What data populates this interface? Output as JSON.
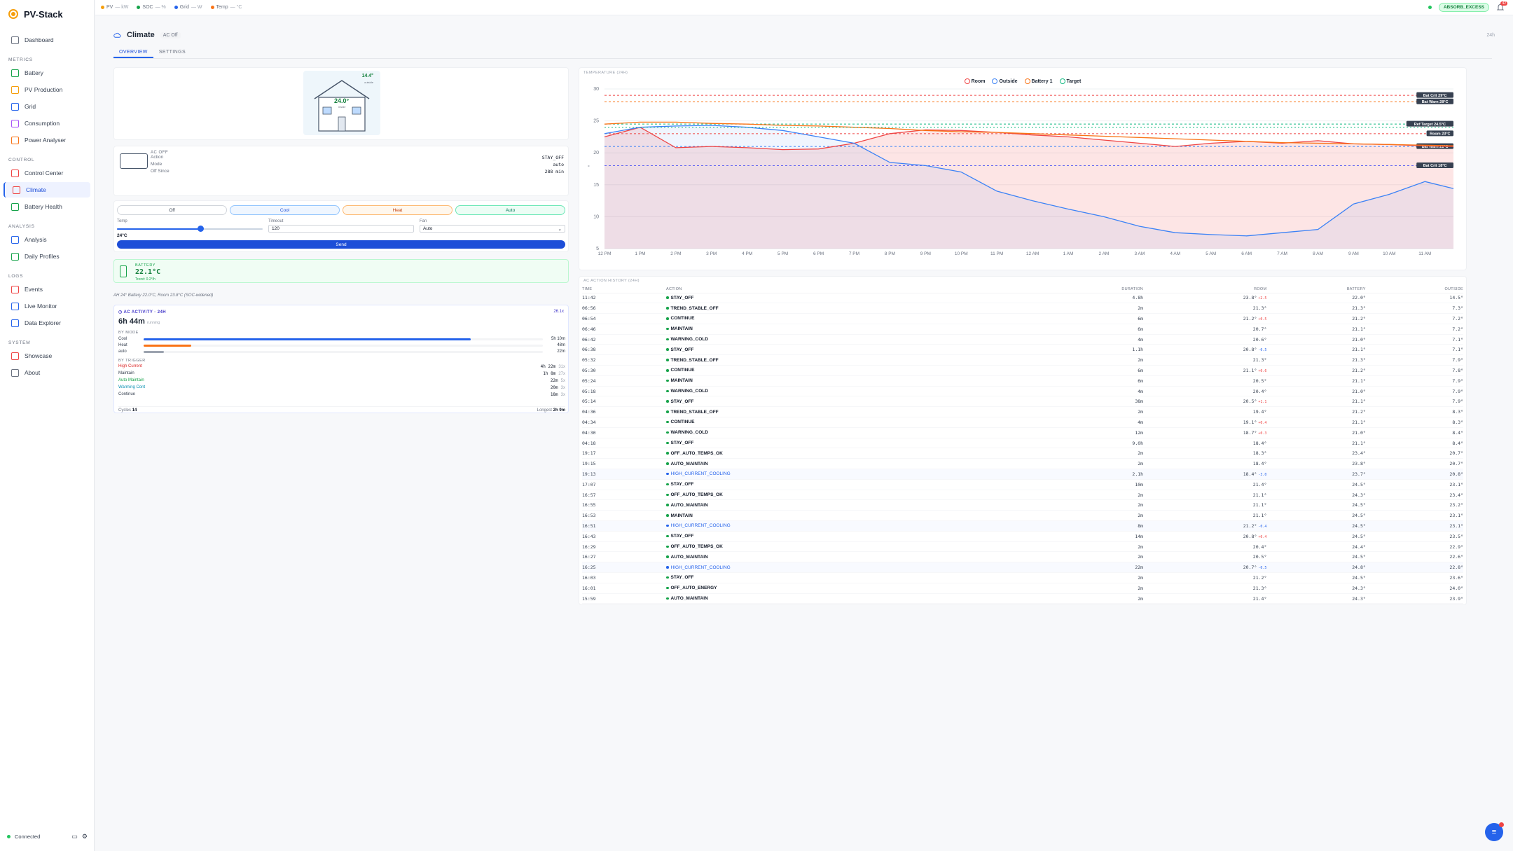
{
  "app": {
    "name": "PV-Stack"
  },
  "sidebar": {
    "items_top": [
      {
        "label": "Dashboard",
        "icon": "home-icon"
      }
    ],
    "sections": [
      {
        "title": "METRICS",
        "items": [
          {
            "label": "Battery",
            "icon": "battery-icon",
            "color": "#16a34a"
          },
          {
            "label": "PV Production",
            "icon": "sun-icon",
            "color": "#f59e0b"
          },
          {
            "label": "Grid",
            "icon": "grid-icon",
            "color": "#2563eb"
          },
          {
            "label": "Consumption",
            "icon": "consumption-icon",
            "color": "#a855f7"
          },
          {
            "label": "Power Analyser",
            "icon": "wave-icon",
            "color": "#f97316"
          }
        ]
      },
      {
        "title": "CONTROL",
        "items": [
          {
            "label": "Control Center",
            "icon": "sliders-icon",
            "color": "#ef4444"
          },
          {
            "label": "Climate",
            "icon": "thermometer-icon",
            "color": "#ef4444"
          },
          {
            "label": "Battery Health",
            "icon": "shield-icon",
            "color": "#16a34a"
          }
        ]
      },
      {
        "title": "ANALYSIS",
        "items": [
          {
            "label": "Analysis",
            "icon": "chart-icon",
            "color": "#2563eb"
          },
          {
            "label": "Daily Profiles",
            "icon": "calendar-icon",
            "color": "#16a34a"
          }
        ]
      },
      {
        "title": "LOGS",
        "items": [
          {
            "label": "Events",
            "icon": "clock-icon",
            "color": "#ef4444"
          },
          {
            "label": "Live Monitor",
            "icon": "monitor-icon",
            "color": "#2563eb"
          },
          {
            "label": "Data Explorer",
            "icon": "database-icon",
            "color": "#2563eb"
          }
        ]
      },
      {
        "title": "SYSTEM",
        "items": [
          {
            "label": "Showcase",
            "icon": "eye-icon",
            "color": "#ef4444"
          },
          {
            "label": "About",
            "icon": "info-icon",
            "color": "#6b7280"
          }
        ]
      }
    ],
    "footer": {
      "status": "Connected"
    }
  },
  "topbar": {
    "indicators": [
      {
        "label": "PV",
        "value": "— kW",
        "color": "#f59e0b"
      },
      {
        "label": "SOC",
        "value": "— %",
        "color": "#16a34a"
      },
      {
        "label": "Grid",
        "value": "— W",
        "color": "#2563eb"
      },
      {
        "label": "Temp",
        "value": "— °C",
        "color": "#f97316"
      }
    ],
    "mode_badge": "ABSORB_EXCESS",
    "notifications": "42"
  },
  "page": {
    "title": "Climate",
    "ac_state": "AC Off",
    "range": "24h",
    "tabs": [
      "OVERVIEW",
      "SETTINGS"
    ]
  },
  "house": {
    "inside_temp": "24.0°",
    "inside_label": "inside",
    "outside_temp": "14.4°",
    "outside_label": "outside"
  },
  "status": {
    "header": "AC OFF",
    "rows": [
      {
        "k": "Action",
        "v": "STAY_OFF"
      },
      {
        "k": "Mode",
        "v": "auto"
      },
      {
        "k": "Off Since",
        "v": "288 min"
      }
    ]
  },
  "control": {
    "modes": [
      "Off",
      "Cool",
      "Heat",
      "Auto"
    ],
    "temp_label": "Temp",
    "temp_value": "24°C",
    "temp_slider": 0.57,
    "timeout_label": "Timeout",
    "timeout_value": "120",
    "fan_label": "Fan",
    "fan_value": "Auto",
    "send_label": "Send"
  },
  "battery": {
    "label": "BATTERY",
    "temp": "22.1°C",
    "sub": "Trend: 0.2°/h"
  },
  "note": "AH 24° Battery 22.0°C, Room 23.8°C (SOC-widened)",
  "activity": {
    "title": "AC ACTIVITY · 24H",
    "count": "26.1x",
    "total": "6h 44m",
    "total_suffix": "running",
    "by_mode_title": "BY MODE",
    "by_mode": [
      {
        "label": "Cool",
        "value": "5h 10m",
        "frac": 0.82,
        "color": "#2563eb"
      },
      {
        "label": "Heat",
        "value": "48m",
        "frac": 0.12,
        "color": "#f97316"
      },
      {
        "label": "auto",
        "value": "22m",
        "frac": 0.05,
        "color": "#9ca3af"
      }
    ],
    "by_trigger_title": "BY TRIGGER",
    "by_trigger": [
      {
        "label": "High Current",
        "value": "4h 22m",
        "count": "31x",
        "color": "#dc2626"
      },
      {
        "label": "Maintain",
        "value": "1h 8m",
        "count": "27x",
        "color": "#374151"
      },
      {
        "label": "Auto Maintain",
        "value": "22m",
        "count": "5x",
        "color": "#16a34a"
      },
      {
        "label": "Warming Cont",
        "value": "20m",
        "count": "3x",
        "color": "#0891b2"
      },
      {
        "label": "Continue",
        "value": "18m",
        "count": "3x",
        "color": "#374151"
      }
    ],
    "cycles_label": "Cycles",
    "cycles": "14",
    "longest_label": "Longest",
    "longest": "2h 9m"
  },
  "chart_data": {
    "type": "line",
    "title": "TEMPERATURE (24H)",
    "legend": [
      "Room",
      "Outside",
      "Battery 1",
      "Target"
    ],
    "x_ticks": [
      "12 PM",
      "1 PM",
      "2 PM",
      "3 PM",
      "4 PM",
      "5 PM",
      "6 PM",
      "7 PM",
      "8 PM",
      "9 PM",
      "10 PM",
      "11 PM",
      "12 AM",
      "1 AM",
      "2 AM",
      "3 AM",
      "4 AM",
      "5 AM",
      "6 AM",
      "7 AM",
      "8 AM",
      "9 AM",
      "10 AM",
      "11 AM"
    ],
    "ylabel": "°",
    "ylim": [
      5,
      30
    ],
    "y_ticks": [
      5,
      10,
      15,
      20,
      25,
      30
    ],
    "hours": [
      0,
      1,
      2,
      3,
      4,
      5,
      6,
      7,
      8,
      9,
      10,
      11,
      12,
      13,
      14,
      15,
      16,
      17,
      18,
      19,
      20,
      21,
      22,
      23,
      23.8
    ],
    "series": [
      {
        "name": "Room",
        "color": "#ef4444",
        "values": [
          22.5,
          24.0,
          20.8,
          21.0,
          20.8,
          20.5,
          20.6,
          21.5,
          23.0,
          23.6,
          23.5,
          23.2,
          22.8,
          22.5,
          22.0,
          21.5,
          21.0,
          21.5,
          21.8,
          21.5,
          21.9,
          21.4,
          21.3,
          21.1,
          21.0
        ]
      },
      {
        "name": "Outside",
        "color": "#3b82f6",
        "values": [
          23.0,
          24.0,
          24.2,
          24.3,
          24.0,
          23.5,
          22.5,
          21.5,
          18.5,
          18.0,
          17.0,
          14.0,
          12.5,
          11.2,
          10.0,
          8.5,
          7.5,
          7.2,
          7.0,
          7.5,
          8.0,
          12.0,
          13.5,
          15.5,
          14.4
        ]
      },
      {
        "name": "Battery 1",
        "color": "#f97316",
        "values": [
          24.5,
          24.8,
          24.8,
          24.6,
          24.5,
          24.3,
          24.2,
          24.0,
          23.8,
          23.5,
          23.3,
          23.2,
          23.0,
          22.8,
          22.6,
          22.4,
          22.2,
          22.0,
          21.8,
          21.6,
          21.5,
          21.4,
          21.3,
          21.2,
          21.1
        ]
      },
      {
        "name": "Target",
        "color": "#10b981",
        "values": [
          24.0,
          24.0,
          24.0,
          24.0,
          24.0,
          24.0,
          24.0,
          24.0,
          24.0,
          24.0,
          24.0,
          24.0,
          24.0,
          24.0,
          24.0,
          24.0,
          24.0,
          24.0,
          24.0,
          24.0,
          24.0,
          24.0,
          24.0,
          24.0,
          24.0
        ]
      }
    ],
    "ref_lines": [
      {
        "label": "Bat Crit 29°C",
        "value": 29,
        "color": "#ef4444"
      },
      {
        "label": "Bat Warn 28°C",
        "value": 28,
        "color": "#f97316"
      },
      {
        "label": "Ref Target 24.5°C",
        "value": 24.5,
        "color": "#10b981"
      },
      {
        "label": "Room 23°C",
        "value": 23,
        "color": "#ef4444"
      },
      {
        "label": "Bat Warn 21°C",
        "value": 21,
        "color": "#3b82f6"
      },
      {
        "label": "Bat Crit 18°C",
        "value": 18,
        "color": "#6366f1"
      }
    ]
  },
  "history": {
    "title": "AC ACTION HISTORY (24H)",
    "columns": [
      "TIME",
      "ACTION",
      "DURATION",
      "ROOM",
      "BATTERY",
      "OUTSIDE"
    ],
    "rows": [
      {
        "time": "11:42",
        "action": "STAY_OFF",
        "dur": "4.8h",
        "room": "23.8°",
        "delta": "+2.5",
        "bat": "22.0°",
        "out": "14.5°",
        "dot": "#16a34a",
        "hl": false
      },
      {
        "time": "06:56",
        "action": "TREND_STABLE_OFF",
        "dur": "2m",
        "room": "21.3°",
        "delta": "",
        "bat": "21.3°",
        "out": "7.3°",
        "dot": "#16a34a",
        "hl": false
      },
      {
        "time": "06:54",
        "action": "CONTINUE",
        "dur": "6m",
        "room": "21.2°",
        "delta": "+0.5",
        "bat": "21.2°",
        "out": "7.2°",
        "dot": "#16a34a",
        "hl": false
      },
      {
        "time": "06:46",
        "action": "MAINTAIN",
        "dur": "6m",
        "room": "20.7°",
        "delta": "",
        "bat": "21.1°",
        "out": "7.2°",
        "dot": "#16a34a",
        "hl": false
      },
      {
        "time": "06:42",
        "action": "WARNING_COLD",
        "dur": "4m",
        "room": "20.6°",
        "delta": "",
        "bat": "21.0°",
        "out": "7.1°",
        "dot": "#16a34a",
        "hl": false
      },
      {
        "time": "06:38",
        "action": "STAY_OFF",
        "dur": "1.1h",
        "room": "20.8°",
        "delta": "-0.5",
        "bat": "21.1°",
        "out": "7.1°",
        "dot": "#16a34a",
        "hl": false
      },
      {
        "time": "05:32",
        "action": "TREND_STABLE_OFF",
        "dur": "2m",
        "room": "21.3°",
        "delta": "",
        "bat": "21.3°",
        "out": "7.9°",
        "dot": "#16a34a",
        "hl": false
      },
      {
        "time": "05:30",
        "action": "CONTINUE",
        "dur": "6m",
        "room": "21.1°",
        "delta": "+0.6",
        "bat": "21.2°",
        "out": "7.8°",
        "dot": "#16a34a",
        "hl": false
      },
      {
        "time": "05:24",
        "action": "MAINTAIN",
        "dur": "6m",
        "room": "20.5°",
        "delta": "",
        "bat": "21.1°",
        "out": "7.9°",
        "dot": "#16a34a",
        "hl": false
      },
      {
        "time": "05:18",
        "action": "WARNING_COLD",
        "dur": "4m",
        "room": "20.4°",
        "delta": "",
        "bat": "21.0°",
        "out": "7.9°",
        "dot": "#16a34a",
        "hl": false
      },
      {
        "time": "05:14",
        "action": "STAY_OFF",
        "dur": "38m",
        "room": "20.5°",
        "delta": "+1.1",
        "bat": "21.1°",
        "out": "7.9°",
        "dot": "#16a34a",
        "hl": false
      },
      {
        "time": "04:36",
        "action": "TREND_STABLE_OFF",
        "dur": "2m",
        "room": "19.4°",
        "delta": "",
        "bat": "21.2°",
        "out": "8.3°",
        "dot": "#16a34a",
        "hl": false
      },
      {
        "time": "04:34",
        "action": "CONTINUE",
        "dur": "4m",
        "room": "19.1°",
        "delta": "+0.4",
        "bat": "21.1°",
        "out": "8.3°",
        "dot": "#16a34a",
        "hl": false
      },
      {
        "time": "04:30",
        "action": "WARNING_COLD",
        "dur": "12m",
        "room": "18.7°",
        "delta": "+0.3",
        "bat": "21.0°",
        "out": "8.4°",
        "dot": "#16a34a",
        "hl": false
      },
      {
        "time": "04:18",
        "action": "STAY_OFF",
        "dur": "9.0h",
        "room": "18.4°",
        "delta": "",
        "bat": "21.1°",
        "out": "8.4°",
        "dot": "#16a34a",
        "hl": false
      },
      {
        "time": "19:17",
        "action": "OFF_AUTO_TEMPS_OK",
        "dur": "2m",
        "room": "18.3°",
        "delta": "",
        "bat": "23.4°",
        "out": "20.7°",
        "dot": "#16a34a",
        "hl": false
      },
      {
        "time": "19:15",
        "action": "AUTO_MAINTAIN",
        "dur": "2m",
        "room": "18.4°",
        "delta": "",
        "bat": "23.8°",
        "out": "20.7°",
        "dot": "#16a34a",
        "hl": false
      },
      {
        "time": "19:13",
        "action": "HIGH_CURRENT_COOLING",
        "dur": "2.1h",
        "room": "18.4°",
        "delta": "-3.0",
        "bat": "23.7°",
        "out": "20.8°",
        "dot": "#2563eb",
        "hl": true
      },
      {
        "time": "17:07",
        "action": "STAY_OFF",
        "dur": "10m",
        "room": "21.4°",
        "delta": "",
        "bat": "24.5°",
        "out": "23.1°",
        "dot": "#16a34a",
        "hl": false
      },
      {
        "time": "16:57",
        "action": "OFF_AUTO_TEMPS_OK",
        "dur": "2m",
        "room": "21.1°",
        "delta": "",
        "bat": "24.3°",
        "out": "23.4°",
        "dot": "#16a34a",
        "hl": false
      },
      {
        "time": "16:55",
        "action": "AUTO_MAINTAIN",
        "dur": "2m",
        "room": "21.1°",
        "delta": "",
        "bat": "24.5°",
        "out": "23.2°",
        "dot": "#16a34a",
        "hl": false
      },
      {
        "time": "16:53",
        "action": "MAINTAIN",
        "dur": "2m",
        "room": "21.1°",
        "delta": "",
        "bat": "24.5°",
        "out": "23.1°",
        "dot": "#16a34a",
        "hl": false
      },
      {
        "time": "16:51",
        "action": "HIGH_CURRENT_COOLING",
        "dur": "8m",
        "room": "21.2°",
        "delta": "-0.4",
        "bat": "24.5°",
        "out": "23.1°",
        "dot": "#2563eb",
        "hl": true
      },
      {
        "time": "16:43",
        "action": "STAY_OFF",
        "dur": "14m",
        "room": "20.8°",
        "delta": "+0.4",
        "bat": "24.5°",
        "out": "23.5°",
        "dot": "#16a34a",
        "hl": false
      },
      {
        "time": "16:29",
        "action": "OFF_AUTO_TEMPS_OK",
        "dur": "2m",
        "room": "20.4°",
        "delta": "",
        "bat": "24.4°",
        "out": "22.9°",
        "dot": "#16a34a",
        "hl": false
      },
      {
        "time": "16:27",
        "action": "AUTO_MAINTAIN",
        "dur": "2m",
        "room": "20.5°",
        "delta": "",
        "bat": "24.5°",
        "out": "22.6°",
        "dot": "#16a34a",
        "hl": false
      },
      {
        "time": "16:25",
        "action": "HIGH_CURRENT_COOLING",
        "dur": "22m",
        "room": "20.7°",
        "delta": "-0.5",
        "bat": "24.8°",
        "out": "22.8°",
        "dot": "#2563eb",
        "hl": true
      },
      {
        "time": "16:03",
        "action": "STAY_OFF",
        "dur": "2m",
        "room": "21.2°",
        "delta": "",
        "bat": "24.5°",
        "out": "23.6°",
        "dot": "#16a34a",
        "hl": false
      },
      {
        "time": "16:01",
        "action": "OFF_AUTO_ENERGY",
        "dur": "2m",
        "room": "21.3°",
        "delta": "",
        "bat": "24.3°",
        "out": "24.0°",
        "dot": "#16a34a",
        "hl": false
      },
      {
        "time": "15:59",
        "action": "AUTO_MAINTAIN",
        "dur": "2m",
        "room": "21.4°",
        "delta": "",
        "bat": "24.3°",
        "out": "23.9°",
        "dot": "#16a34a",
        "hl": false
      }
    ]
  }
}
